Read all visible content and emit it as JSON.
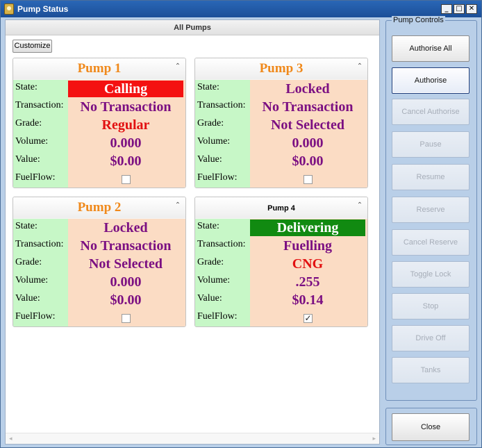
{
  "window": {
    "title": "Pump Status",
    "minimize": "_",
    "maximize": "□",
    "close": "✕"
  },
  "left": {
    "header": "All Pumps",
    "customize_label": "Customize",
    "scroll_left": "◂",
    "scroll_right": "▸"
  },
  "row_labels": {
    "state": "State:",
    "transaction": "Transaction:",
    "grade": "Grade:",
    "volume": "Volume:",
    "value": "Value:",
    "fuelflow": "FuelFlow:"
  },
  "pumps": [
    {
      "title": "Pump 1",
      "state": "Calling",
      "transaction": "No Transaction",
      "grade": "Regular",
      "volume": "0.000",
      "value": "$0.00",
      "fuelflow_checked": false
    },
    {
      "title": "Pump 3",
      "state": "Locked",
      "transaction": "No Transaction",
      "grade": "Not Selected",
      "volume": "0.000",
      "value": "$0.00",
      "fuelflow_checked": false
    },
    {
      "title": "Pump 2",
      "state": "Locked",
      "transaction": "No Transaction",
      "grade": "Not Selected",
      "volume": "0.000",
      "value": "$0.00",
      "fuelflow_checked": false
    },
    {
      "title": "Pump 4",
      "state": "Delivering",
      "transaction": "Fuelling",
      "grade": "CNG",
      "volume": ".255",
      "value": "$0.14",
      "fuelflow_checked": true
    }
  ],
  "controls": {
    "legend": "Pump Controls",
    "buttons": [
      "Authorise All",
      "Authorise",
      "Cancel Authorise",
      "Pause",
      "Resume",
      "Reserve",
      "Cancel Reserve",
      "Toggle Lock",
      "Stop",
      "Drive Off",
      "Tanks"
    ],
    "close_label": "Close"
  },
  "icons": {
    "collapse": "chevron-up-icon",
    "checkmark": "✓"
  },
  "colors": {
    "state_calling": "#f41111",
    "state_delivering": "#118a11",
    "title_orange": "#f0891b",
    "value_purple": "#7b0f82"
  }
}
